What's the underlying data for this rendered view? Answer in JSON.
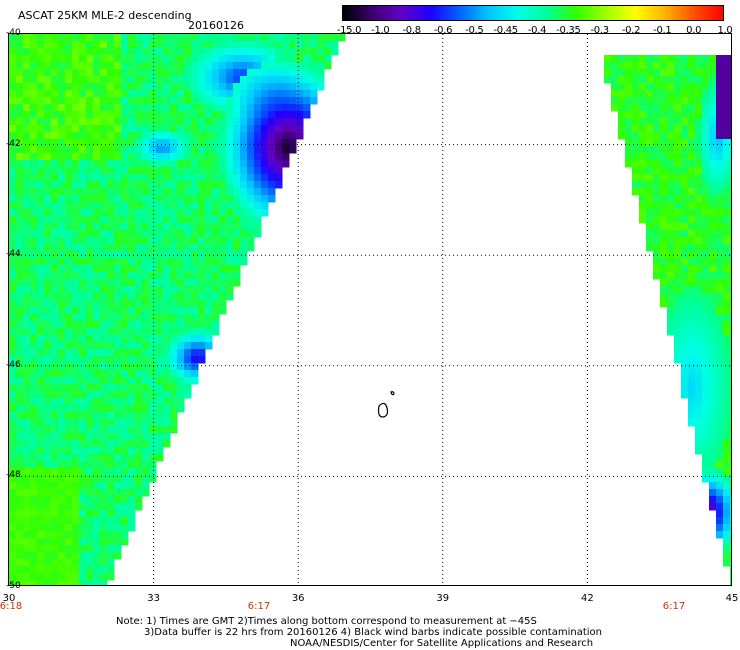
{
  "header": {
    "title": "ASCAT 25KM MLE-2 descending",
    "date": "20160126"
  },
  "colorbar": {
    "labels": [
      "-15.0",
      "-1.0",
      "-0.8",
      "-0.6",
      "-0.5",
      "-0.45",
      "-0.4",
      "-0.35",
      "-0.3",
      "-0.2",
      "-0.1",
      "0.0",
      "1.0"
    ],
    "colors": [
      "#000000",
      "#3a006e",
      "#6400c8",
      "#1e00ff",
      "#0064ff",
      "#00c8ff",
      "#00ffe6",
      "#00ff96",
      "#32ff00",
      "#a0ff00",
      "#ffff00",
      "#ffb400",
      "#ff5000",
      "#ff0000"
    ]
  },
  "map": {
    "lat_labels": [
      "-40",
      "-42",
      "-44",
      "-46",
      "-48",
      "-50"
    ],
    "lon_labels": [
      "30",
      "33",
      "36",
      "39",
      "42",
      "45"
    ],
    "time_labels": [
      "6:18",
      "6:17",
      "6:17"
    ],
    "colors": {
      "grid": "#000000",
      "time_label": "#d03000",
      "background": "#ffffff"
    }
  },
  "notes": {
    "line1": "Note: 1) Times are GMT 2)Times along bottom correspond to measurement at −45S",
    "line2": "3)Data buffer is 22 hrs from 20160126 4) Black wind barbs indicate possible contamination",
    "line3": "NOAA/NESDIS/Center for Satellite Applications and Research"
  }
}
